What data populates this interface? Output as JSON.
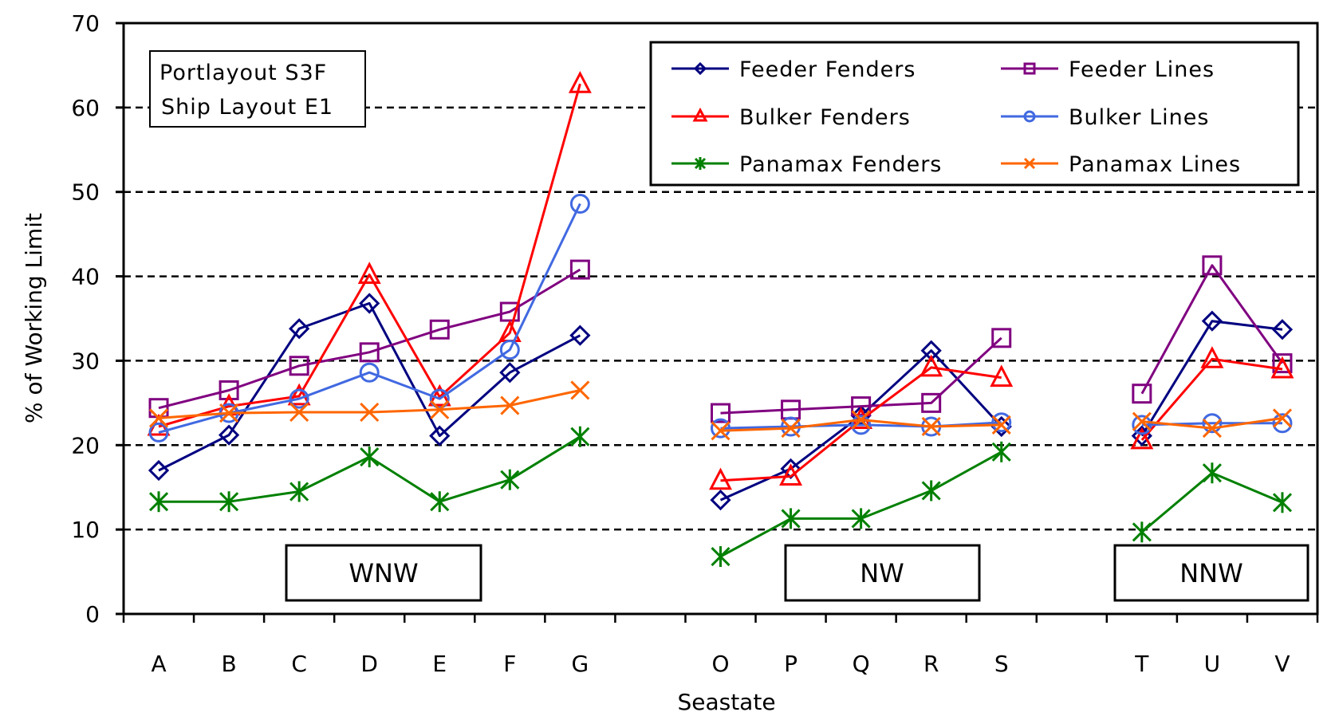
{
  "chart_data": {
    "type": "line",
    "title": "",
    "xlabel": "Seastate",
    "ylabel": "% of Working Limit",
    "ylim": [
      0,
      70
    ],
    "yticks": [
      0,
      10,
      20,
      30,
      40,
      50,
      60,
      70
    ],
    "grid": "horizontal dashed",
    "legend_position": "top-right (inside)",
    "categories": [
      "A",
      "B",
      "C",
      "D",
      "E",
      "F",
      "G",
      "",
      "O",
      "P",
      "Q",
      "R",
      "S",
      "",
      "T",
      "U",
      "V"
    ],
    "series": [
      {
        "name": "Feeder Fenders",
        "color": "#000080",
        "marker": "diamond",
        "values": [
          17.0,
          21.2,
          33.8,
          36.8,
          21.1,
          28.6,
          33.0,
          null,
          13.5,
          17.2,
          23.5,
          31.2,
          22.2,
          null,
          21.1,
          34.7,
          33.7
        ]
      },
      {
        "name": "Feeder Lines",
        "color": "#800080",
        "marker": "square",
        "values": [
          24.4,
          26.5,
          29.4,
          31.0,
          33.7,
          35.8,
          40.8,
          null,
          23.8,
          24.2,
          24.6,
          25.0,
          32.7,
          null,
          26.1,
          41.3,
          29.7
        ]
      },
      {
        "name": "Bulker Fenders",
        "color": "#ff0000",
        "marker": "triangle",
        "values": [
          22.2,
          24.6,
          25.8,
          40.2,
          25.7,
          33.3,
          62.8,
          null,
          15.8,
          16.3,
          23.0,
          29.2,
          28.0,
          null,
          20.6,
          30.2,
          29.0
        ]
      },
      {
        "name": "Bulker Lines",
        "color": "#4169e1",
        "marker": "circle",
        "values": [
          21.5,
          23.8,
          25.5,
          28.6,
          25.5,
          31.3,
          48.6,
          null,
          22.0,
          22.2,
          22.4,
          22.2,
          22.7,
          null,
          22.4,
          22.6,
          22.6
        ]
      },
      {
        "name": "Panamax Fenders",
        "color": "#008000",
        "marker": "star",
        "values": [
          13.3,
          13.3,
          14.5,
          18.6,
          13.3,
          15.9,
          21.0,
          null,
          6.8,
          11.3,
          11.3,
          14.6,
          19.2,
          null,
          9.7,
          16.7,
          13.2
        ]
      },
      {
        "name": "Panamax Lines",
        "color": "#ff6600",
        "marker": "x",
        "values": [
          23.2,
          23.8,
          23.9,
          23.9,
          24.2,
          24.7,
          26.5,
          null,
          21.7,
          22.0,
          23.0,
          22.2,
          22.4,
          null,
          22.8,
          22.0,
          23.2
        ]
      }
    ],
    "annotations": {
      "info_box": [
        "Portlayout S3F",
        "Ship Layout E1"
      ],
      "groups": [
        {
          "label": "WNW",
          "categories": [
            "A",
            "B",
            "C",
            "D",
            "E",
            "F",
            "G"
          ]
        },
        {
          "label": "NW",
          "categories": [
            "O",
            "P",
            "Q",
            "R",
            "S"
          ]
        },
        {
          "label": "NNW",
          "categories": [
            "T",
            "U",
            "V"
          ]
        }
      ]
    }
  },
  "legend": {
    "items": [
      {
        "label": "Feeder Fenders"
      },
      {
        "label": "Feeder Lines"
      },
      {
        "label": "Bulker Fenders"
      },
      {
        "label": "Bulker Lines"
      },
      {
        "label": "Panamax Fenders"
      },
      {
        "label": "Panamax Lines"
      }
    ]
  },
  "info_box": {
    "line1": "Portlayout S3F",
    "line2": "Ship Layout E1"
  },
  "groups": {
    "wnw": "WNW",
    "nw": "NW",
    "nnw": "NNW"
  },
  "axes": {
    "x_title": "Seastate",
    "y_title": "% of Working Limit",
    "y_ticks": [
      "0",
      "10",
      "20",
      "30",
      "40",
      "50",
      "60",
      "70"
    ],
    "x_labels": [
      "A",
      "B",
      "C",
      "D",
      "E",
      "F",
      "G",
      "",
      "O",
      "P",
      "Q",
      "R",
      "S",
      "",
      "T",
      "U",
      "V"
    ]
  }
}
